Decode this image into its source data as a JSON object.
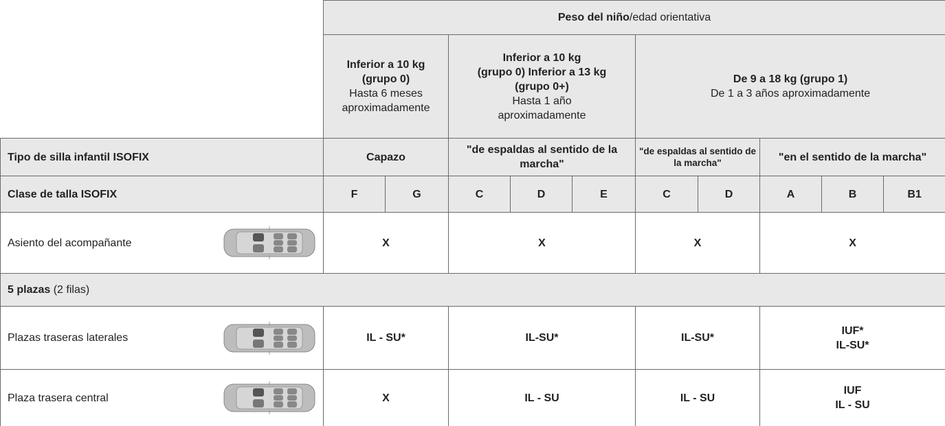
{
  "header": {
    "title_bold": "Peso del niño",
    "title_rest": "/edad orientativa",
    "groups": [
      {
        "bold": [
          "Inferior a 10 kg",
          "(grupo 0)"
        ],
        "normal": [
          "Hasta 6 meses",
          "aproximadamente"
        ]
      },
      {
        "bold": [
          "Inferior a 10 kg",
          "(grupo 0)  Inferior a 13 kg",
          "(grupo 0+)"
        ],
        "normal": [
          "Hasta 1 año",
          "aproximadamente"
        ]
      },
      {
        "bold": [
          "De 9 a 18 kg (grupo 1)"
        ],
        "normal": [
          "De 1 a 3 años aproximadamente"
        ]
      }
    ]
  },
  "table": {
    "type_label": "Tipo de silla infantil ISOFIX",
    "types": [
      "Capazo",
      "\"de espaldas al sentido de la marcha\"",
      "\"de espaldas al sentido de la marcha\"",
      "\"en el sentido de la marcha\""
    ],
    "size_label": "Clase de talla ISOFIX",
    "sizes": [
      "F",
      "G",
      "C",
      "D",
      "E",
      "C",
      "D",
      "A",
      "B",
      "B1"
    ],
    "rows": [
      {
        "label": "Asiento del acompañante",
        "cells": [
          [
            "X"
          ],
          [
            "X"
          ],
          [
            "X"
          ],
          [
            "X"
          ]
        ]
      },
      {
        "section_bold": "5 plazas",
        "section_rest": "(2 filas)"
      },
      {
        "label": "Plazas traseras laterales",
        "cells": [
          [
            "IL - SU*"
          ],
          [
            "IL-SU*"
          ],
          [
            "IL-SU*"
          ],
          [
            "IUF*",
            "IL-SU*"
          ]
        ]
      },
      {
        "label": "Plaza trasera central",
        "cells": [
          [
            "X"
          ],
          [
            "IL - SU"
          ],
          [
            "IL - SU"
          ],
          [
            "IUF",
            "IL - SU"
          ]
        ]
      }
    ]
  }
}
